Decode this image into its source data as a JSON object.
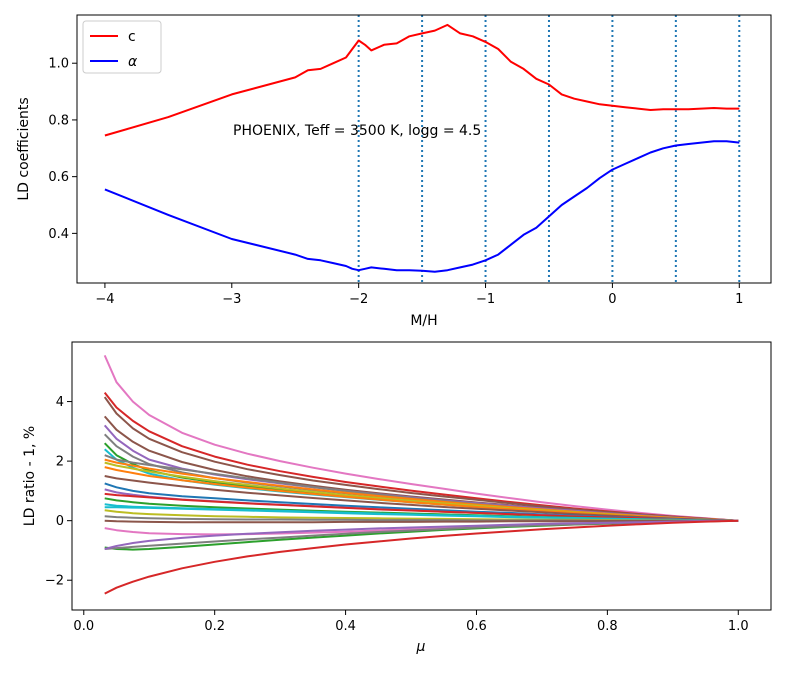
{
  "chart_data": [
    {
      "type": "line",
      "xlabel": "M/H",
      "ylabel": "LD coefficients",
      "xlim": [
        -4.22,
        1.25
      ],
      "ylim": [
        0.225,
        1.17
      ],
      "xticks": [
        "−4",
        "−3",
        "−2",
        "−1",
        "0",
        "1"
      ],
      "xtick_values": [
        -4,
        -3,
        -2,
        -1,
        0,
        1
      ],
      "yticks": [
        "0.4",
        "0.6",
        "0.8",
        "1.0"
      ],
      "ytick_values": [
        0.4,
        0.6,
        0.8,
        1.0
      ],
      "legend_placement": "top-left",
      "annotation": "PHOENIX, Teff = 3500 K, logg = 4.5",
      "vlines": [
        -2,
        -1.5,
        -1,
        -0.5,
        0,
        0.5,
        1
      ],
      "vline_color": "#1f77b4",
      "series": [
        {
          "name": "c",
          "color": "#ff0000",
          "x": [
            -4,
            -3.5,
            -3,
            -2.5,
            -2.4,
            -2.3,
            -2.2,
            -2.1,
            -2.05,
            -2.0,
            -1.95,
            -1.9,
            -1.8,
            -1.7,
            -1.6,
            -1.5,
            -1.4,
            -1.3,
            -1.2,
            -1.1,
            -1.0,
            -0.9,
            -0.8,
            -0.7,
            -0.6,
            -0.5,
            -0.4,
            -0.3,
            -0.2,
            -0.1,
            0.0,
            0.1,
            0.2,
            0.3,
            0.4,
            0.5,
            0.6,
            0.7,
            0.8,
            0.9,
            1.0
          ],
          "values": [
            0.745,
            0.81,
            0.89,
            0.95,
            0.975,
            0.98,
            1.0,
            1.02,
            1.05,
            1.08,
            1.065,
            1.045,
            1.065,
            1.07,
            1.095,
            1.105,
            1.115,
            1.135,
            1.105,
            1.095,
            1.075,
            1.05,
            1.005,
            0.98,
            0.945,
            0.925,
            0.89,
            0.875,
            0.865,
            0.855,
            0.85,
            0.845,
            0.84,
            0.835,
            0.838,
            0.838,
            0.838,
            0.84,
            0.842,
            0.84,
            0.84
          ]
        },
        {
          "name": "α",
          "color": "#0000ff",
          "x": [
            -4,
            -3.5,
            -3,
            -2.5,
            -2.4,
            -2.3,
            -2.2,
            -2.1,
            -2.05,
            -2.0,
            -1.95,
            -1.9,
            -1.8,
            -1.7,
            -1.6,
            -1.5,
            -1.4,
            -1.3,
            -1.2,
            -1.1,
            -1.0,
            -0.9,
            -0.8,
            -0.7,
            -0.6,
            -0.5,
            -0.4,
            -0.3,
            -0.2,
            -0.1,
            0.0,
            0.1,
            0.2,
            0.3,
            0.4,
            0.5,
            0.6,
            0.7,
            0.8,
            0.9,
            1.0
          ],
          "values": [
            0.555,
            0.465,
            0.38,
            0.325,
            0.31,
            0.305,
            0.295,
            0.285,
            0.275,
            0.27,
            0.275,
            0.28,
            0.275,
            0.27,
            0.27,
            0.268,
            0.265,
            0.27,
            0.28,
            0.29,
            0.305,
            0.325,
            0.36,
            0.395,
            0.42,
            0.46,
            0.5,
            0.53,
            0.56,
            0.595,
            0.625,
            0.645,
            0.665,
            0.685,
            0.7,
            0.71,
            0.715,
            0.72,
            0.725,
            0.725,
            0.72
          ]
        }
      ]
    },
    {
      "type": "line",
      "xlabel": "μ",
      "ylabel": "LD ratio - 1, %",
      "xlim": [
        -0.018,
        1.05
      ],
      "ylim": [
        -3.0,
        6.0
      ],
      "xticks": [
        "0.0",
        "0.2",
        "0.4",
        "0.6",
        "0.8",
        "1.0"
      ],
      "xtick_values": [
        0.0,
        0.2,
        0.4,
        0.6,
        0.8,
        1.0
      ],
      "yticks": [
        "−2",
        "0",
        "2",
        "4"
      ],
      "ytick_values": [
        -2,
        0,
        2,
        4
      ],
      "x": [
        0.032,
        0.05,
        0.075,
        0.1,
        0.15,
        0.2,
        0.25,
        0.3,
        0.35,
        0.4,
        0.45,
        0.5,
        0.55,
        0.6,
        0.65,
        0.7,
        0.75,
        0.8,
        0.85,
        0.9,
        0.95,
        1.0
      ],
      "palette": [
        "#1f77b4",
        "#ff7f0e",
        "#2ca02c",
        "#d62728",
        "#9467bd",
        "#8c564b",
        "#e377c2",
        "#7f7f7f",
        "#bcbd22",
        "#17becf"
      ],
      "series": [
        {
          "values": [
            5.55,
            4.65,
            4.0,
            3.55,
            2.95,
            2.55,
            2.25,
            2.0,
            1.78,
            1.58,
            1.4,
            1.23,
            1.07,
            0.91,
            0.76,
            0.62,
            0.49,
            0.37,
            0.26,
            0.16,
            0.08,
            0.0
          ],
          "color": "#e377c2"
        },
        {
          "values": [
            4.3,
            3.8,
            3.35,
            3.0,
            2.5,
            2.15,
            1.88,
            1.66,
            1.47,
            1.3,
            1.15,
            1.01,
            0.88,
            0.75,
            0.63,
            0.52,
            0.41,
            0.31,
            0.22,
            0.14,
            0.07,
            0.0
          ],
          "color": "#d62728"
        },
        {
          "values": [
            4.15,
            3.6,
            3.1,
            2.75,
            2.3,
            1.98,
            1.73,
            1.53,
            1.35,
            1.2,
            1.06,
            0.93,
            0.81,
            0.7,
            0.59,
            0.48,
            0.38,
            0.29,
            0.21,
            0.13,
            0.06,
            0.0
          ],
          "color": "#8c564b"
        },
        {
          "values": [
            3.5,
            3.05,
            2.65,
            2.35,
            1.97,
            1.7,
            1.49,
            1.32,
            1.17,
            1.04,
            0.92,
            0.81,
            0.71,
            0.61,
            0.52,
            0.43,
            0.34,
            0.26,
            0.19,
            0.12,
            0.06,
            0.0
          ],
          "color": "#8c564b"
        },
        {
          "values": [
            3.2,
            2.75,
            2.35,
            2.05,
            1.75,
            1.55,
            1.39,
            1.25,
            1.12,
            1.0,
            0.89,
            0.78,
            0.68,
            0.59,
            0.5,
            0.41,
            0.33,
            0.25,
            0.18,
            0.11,
            0.05,
            0.0
          ],
          "color": "#9467bd"
        },
        {
          "values": [
            2.9,
            2.5,
            2.15,
            1.9,
            1.62,
            1.43,
            1.28,
            1.15,
            1.03,
            0.92,
            0.82,
            0.72,
            0.63,
            0.54,
            0.46,
            0.38,
            0.3,
            0.23,
            0.16,
            0.1,
            0.05,
            0.0
          ],
          "color": "#7f7f7f"
        },
        {
          "values": [
            2.6,
            2.2,
            1.9,
            1.68,
            1.45,
            1.29,
            1.16,
            1.04,
            0.94,
            0.84,
            0.75,
            0.66,
            0.58,
            0.5,
            0.42,
            0.35,
            0.28,
            0.21,
            0.15,
            0.09,
            0.04,
            0.0
          ],
          "color": "#2ca02c"
        },
        {
          "values": [
            2.4,
            2.05,
            1.78,
            1.58,
            1.36,
            1.21,
            1.09,
            0.98,
            0.88,
            0.79,
            0.7,
            0.62,
            0.54,
            0.47,
            0.4,
            0.33,
            0.26,
            0.2,
            0.14,
            0.09,
            0.04,
            0.0
          ],
          "color": "#17becf"
        },
        {
          "values": [
            2.2,
            2.05,
            1.95,
            1.87,
            1.72,
            1.57,
            1.42,
            1.27,
            1.13,
            1.0,
            0.88,
            0.76,
            0.66,
            0.56,
            0.47,
            0.38,
            0.3,
            0.22,
            0.16,
            0.1,
            0.04,
            0.0
          ],
          "color": "#7f7f7f"
        },
        {
          "values": [
            2.05,
            1.95,
            1.85,
            1.75,
            1.58,
            1.43,
            1.3,
            1.17,
            1.05,
            0.94,
            0.83,
            0.73,
            0.63,
            0.54,
            0.46,
            0.38,
            0.3,
            0.23,
            0.16,
            0.1,
            0.05,
            0.0
          ],
          "color": "#ff7f0e"
        },
        {
          "values": [
            1.95,
            1.85,
            1.75,
            1.65,
            1.48,
            1.33,
            1.2,
            1.08,
            0.97,
            0.86,
            0.76,
            0.67,
            0.58,
            0.5,
            0.42,
            0.35,
            0.28,
            0.21,
            0.15,
            0.09,
            0.04,
            0.0
          ],
          "color": "#bcbd22"
        },
        {
          "values": [
            1.8,
            1.7,
            1.6,
            1.5,
            1.36,
            1.23,
            1.11,
            1.0,
            0.9,
            0.8,
            0.71,
            0.62,
            0.54,
            0.46,
            0.39,
            0.32,
            0.26,
            0.19,
            0.14,
            0.09,
            0.04,
            0.0
          ],
          "color": "#ff7f0e"
        },
        {
          "values": [
            1.5,
            1.42,
            1.35,
            1.28,
            1.15,
            1.04,
            0.94,
            0.85,
            0.76,
            0.68,
            0.6,
            0.53,
            0.46,
            0.4,
            0.34,
            0.28,
            0.22,
            0.17,
            0.12,
            0.07,
            0.03,
            0.0
          ],
          "color": "#8c564b"
        },
        {
          "values": [
            1.25,
            1.12,
            1.0,
            0.92,
            0.82,
            0.75,
            0.68,
            0.62,
            0.56,
            0.5,
            0.45,
            0.4,
            0.35,
            0.3,
            0.26,
            0.21,
            0.17,
            0.13,
            0.09,
            0.06,
            0.03,
            0.0
          ],
          "color": "#1f77b4"
        },
        {
          "values": [
            1.05,
            0.95,
            0.87,
            0.8,
            0.71,
            0.65,
            0.59,
            0.54,
            0.49,
            0.44,
            0.39,
            0.35,
            0.3,
            0.26,
            0.22,
            0.19,
            0.15,
            0.11,
            0.08,
            0.05,
            0.02,
            0.0
          ],
          "color": "#9467bd"
        },
        {
          "values": [
            0.9,
            0.86,
            0.82,
            0.78,
            0.7,
            0.64,
            0.58,
            0.53,
            0.48,
            0.43,
            0.38,
            0.34,
            0.3,
            0.26,
            0.22,
            0.18,
            0.14,
            0.11,
            0.08,
            0.05,
            0.02,
            0.0
          ],
          "color": "#d62728"
        },
        {
          "values": [
            0.75,
            0.68,
            0.62,
            0.57,
            0.5,
            0.45,
            0.41,
            0.37,
            0.33,
            0.3,
            0.27,
            0.24,
            0.21,
            0.18,
            0.15,
            0.12,
            0.1,
            0.07,
            0.05,
            0.03,
            0.01,
            0.0
          ],
          "color": "#2ca02c"
        },
        {
          "values": [
            0.55,
            0.5,
            0.47,
            0.45,
            0.42,
            0.39,
            0.36,
            0.33,
            0.3,
            0.27,
            0.24,
            0.21,
            0.18,
            0.16,
            0.13,
            0.11,
            0.09,
            0.07,
            0.05,
            0.03,
            0.01,
            0.0
          ],
          "color": "#17becf"
        },
        {
          "values": [
            0.45,
            0.45,
            0.44,
            0.43,
            0.4,
            0.37,
            0.34,
            0.31,
            0.28,
            0.25,
            0.22,
            0.2,
            0.17,
            0.15,
            0.12,
            0.1,
            0.08,
            0.06,
            0.04,
            0.03,
            0.01,
            0.0
          ],
          "color": "#17becf"
        },
        {
          "values": [
            0.35,
            0.3,
            0.25,
            0.22,
            0.18,
            0.15,
            0.13,
            0.11,
            0.1,
            0.09,
            0.08,
            0.07,
            0.06,
            0.05,
            0.04,
            0.03,
            0.03,
            0.02,
            0.01,
            0.01,
            0.0,
            0.0
          ],
          "color": "#bcbd22"
        },
        {
          "values": [
            0.15,
            0.12,
            0.1,
            0.08,
            0.06,
            0.05,
            0.04,
            0.04,
            0.03,
            0.03,
            0.02,
            0.02,
            0.02,
            0.01,
            0.01,
            0.01,
            0.01,
            0.0,
            0.0,
            0.0,
            0.0,
            0.0
          ],
          "color": "#7f7f7f"
        },
        {
          "values": [
            0.0,
            -0.02,
            -0.03,
            -0.04,
            -0.05,
            -0.05,
            -0.05,
            -0.05,
            -0.05,
            -0.04,
            -0.04,
            -0.04,
            -0.03,
            -0.03,
            -0.02,
            -0.02,
            -0.02,
            -0.01,
            -0.01,
            0.0,
            0.0,
            0.0
          ],
          "color": "#8c564b"
        },
        {
          "values": [
            -0.25,
            -0.32,
            -0.38,
            -0.42,
            -0.45,
            -0.46,
            -0.45,
            -0.43,
            -0.4,
            -0.37,
            -0.33,
            -0.29,
            -0.26,
            -0.22,
            -0.19,
            -0.16,
            -0.13,
            -0.1,
            -0.07,
            -0.04,
            -0.02,
            0.0
          ],
          "color": "#e377c2"
        },
        {
          "values": [
            -0.9,
            -0.95,
            -0.97,
            -0.95,
            -0.88,
            -0.8,
            -0.72,
            -0.64,
            -0.57,
            -0.5,
            -0.43,
            -0.37,
            -0.31,
            -0.26,
            -0.21,
            -0.17,
            -0.13,
            -0.1,
            -0.07,
            -0.04,
            -0.02,
            0.0
          ],
          "color": "#2ca02c"
        },
        {
          "values": [
            -0.95,
            -0.92,
            -0.88,
            -0.84,
            -0.77,
            -0.7,
            -0.63,
            -0.57,
            -0.5,
            -0.44,
            -0.38,
            -0.33,
            -0.28,
            -0.23,
            -0.19,
            -0.15,
            -0.12,
            -0.09,
            -0.06,
            -0.04,
            -0.02,
            0.0
          ],
          "color": "#7f7f7f"
        },
        {
          "values": [
            -0.95,
            -0.85,
            -0.75,
            -0.68,
            -0.58,
            -0.5,
            -0.44,
            -0.39,
            -0.34,
            -0.3,
            -0.26,
            -0.23,
            -0.2,
            -0.17,
            -0.14,
            -0.11,
            -0.09,
            -0.07,
            -0.05,
            -0.03,
            -0.01,
            0.0
          ],
          "color": "#9467bd"
        },
        {
          "values": [
            -2.45,
            -2.25,
            -2.05,
            -1.88,
            -1.6,
            -1.38,
            -1.2,
            -1.05,
            -0.92,
            -0.8,
            -0.7,
            -0.6,
            -0.51,
            -0.43,
            -0.36,
            -0.29,
            -0.23,
            -0.17,
            -0.12,
            -0.07,
            -0.03,
            0.0
          ],
          "color": "#d62728"
        }
      ]
    }
  ]
}
